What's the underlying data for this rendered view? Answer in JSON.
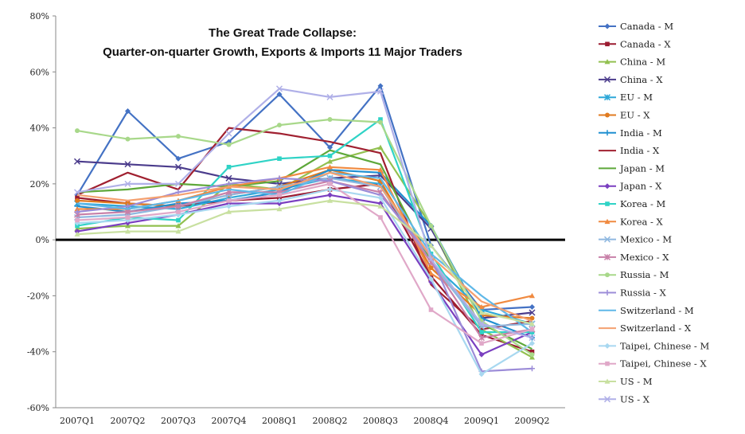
{
  "chart_data": {
    "type": "line",
    "title": "The Great Trade Collapse:",
    "subtitle": "Quarter-on-quarter Growth, Exports & Imports 11 Major Traders",
    "xlabel": "",
    "ylabel": "",
    "categories": [
      "2007Q1",
      "2007Q2",
      "2007Q3",
      "2007Q4",
      "2008Q1",
      "2008Q2",
      "2008Q3",
      "2008Q4",
      "2009Q1",
      "2009Q2"
    ],
    "ylim": [
      -60,
      80
    ],
    "yticks": [
      -60,
      -40,
      -20,
      0,
      20,
      40,
      60,
      80
    ],
    "ytick_labels": [
      "-60%",
      "-40%",
      "-20%",
      "0%",
      "20%",
      "40%",
      "60%",
      "80%"
    ],
    "legend_position": "right",
    "grid": false,
    "series": [
      {
        "name": "Canada  - M",
        "color": "#4472C4",
        "marker": "diamond",
        "values": [
          16,
          46,
          29,
          35,
          52,
          33,
          55,
          -2,
          -25,
          -24
        ]
      },
      {
        "name": "Canada  - X",
        "color": "#9B1B30",
        "marker": "square",
        "values": [
          15,
          13,
          12,
          14,
          15,
          18,
          20,
          -13,
          -34,
          -40
        ]
      },
      {
        "name": "China - M",
        "color": "#92C050",
        "marker": "triangle",
        "values": [
          4,
          5,
          5,
          20,
          18,
          28,
          33,
          5,
          -32,
          -42
        ]
      },
      {
        "name": "China - X",
        "color": "#4B3C8C",
        "marker": "x",
        "values": [
          28,
          27,
          26,
          22,
          20,
          22,
          23,
          4,
          -28,
          -26
        ]
      },
      {
        "name": "EU - M",
        "color": "#2EA8D8",
        "marker": "star",
        "values": [
          13,
          12,
          11,
          15,
          18,
          22,
          20,
          -8,
          -25,
          -30
        ]
      },
      {
        "name": "EU - X",
        "color": "#E07B20",
        "marker": "circle",
        "values": [
          14,
          13,
          12,
          16,
          19,
          25,
          21,
          -10,
          -27,
          -28
        ]
      },
      {
        "name": "India - M",
        "color": "#1F8FD0",
        "marker": "plus",
        "values": [
          12,
          10,
          13,
          14,
          17,
          25,
          24,
          5,
          -28,
          -35
        ]
      },
      {
        "name": "India - X",
        "color": "#A02030",
        "marker": "none",
        "values": [
          16,
          24,
          18,
          40,
          38,
          35,
          31,
          -16,
          -32,
          -29
        ]
      },
      {
        "name": "Japan - M",
        "color": "#5EA83A",
        "marker": "none",
        "values": [
          17,
          18,
          20,
          19,
          21,
          32,
          27,
          -8,
          -30,
          -39
        ]
      },
      {
        "name": "Japan - X",
        "color": "#7A3FC0",
        "marker": "diamond",
        "values": [
          3,
          6,
          9,
          13,
          13,
          16,
          13,
          -15,
          -41,
          -33
        ]
      },
      {
        "name": "Korea - M",
        "color": "#2FD3C6",
        "marker": "square",
        "values": [
          5,
          8,
          7,
          26,
          29,
          30,
          43,
          -5,
          -33,
          -33
        ]
      },
      {
        "name": "Korea - X",
        "color": "#F08A40",
        "marker": "triangle",
        "values": [
          11,
          11,
          14,
          19,
          22,
          26,
          25,
          -12,
          -24,
          -20
        ]
      },
      {
        "name": "Mexico  - M",
        "color": "#8FB8E0",
        "marker": "x",
        "values": [
          8,
          9,
          12,
          16,
          19,
          22,
          19,
          -8,
          -31,
          -30
        ]
      },
      {
        "name": "Mexico  - X",
        "color": "#C880A8",
        "marker": "star",
        "values": [
          9,
          10,
          12,
          17,
          17,
          21,
          17,
          -8,
          -35,
          -32
        ]
      },
      {
        "name": "Russia - M",
        "color": "#A8D88A",
        "marker": "circle",
        "values": [
          39,
          36,
          37,
          34,
          41,
          43,
          42,
          5,
          -29,
          -41
        ]
      },
      {
        "name": "Russia - X",
        "color": "#9C8CD8",
        "marker": "plus",
        "values": [
          10,
          12,
          17,
          20,
          22,
          21,
          16,
          -6,
          -47,
          -46
        ]
      },
      {
        "name": "Switzerland - M",
        "color": "#5FB8E8",
        "marker": "none",
        "values": [
          13,
          11,
          14,
          18,
          16,
          24,
          22,
          -5,
          -20,
          -33
        ]
      },
      {
        "name": "Switzerland - X",
        "color": "#F4A070",
        "marker": "none",
        "values": [
          16,
          14,
          16,
          19,
          18,
          24,
          19,
          -6,
          -22,
          -29
        ]
      },
      {
        "name": "Taipei, Chinese - M",
        "color": "#A8D8F0",
        "marker": "diamond",
        "values": [
          6,
          7,
          9,
          12,
          14,
          18,
          15,
          -14,
          -48,
          -37
        ]
      },
      {
        "name": "Taipei, Chinese  - X",
        "color": "#E0A8C8",
        "marker": "square",
        "values": [
          7,
          8,
          10,
          14,
          16,
          20,
          8,
          -25,
          -37,
          -32
        ]
      },
      {
        "name": "US - M",
        "color": "#C8E0A0",
        "marker": "triangle",
        "values": [
          2,
          3,
          3,
          10,
          11,
          14,
          12,
          -2,
          -26,
          -30
        ]
      },
      {
        "name": "US - X",
        "color": "#B0B0E8",
        "marker": "x",
        "values": [
          17,
          20,
          20,
          38,
          54,
          51,
          53,
          -7,
          -30,
          -35
        ]
      }
    ]
  }
}
